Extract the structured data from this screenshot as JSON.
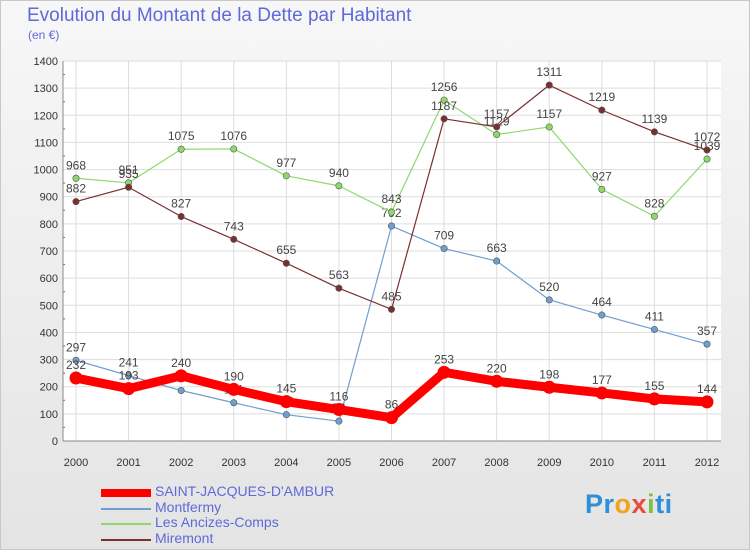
{
  "header": {
    "title": "Evolution du Montant de la Dette par Habitant",
    "subtitle": "(en €)"
  },
  "chart_data": {
    "type": "line",
    "title": "Evolution du Montant de la Dette par Habitant",
    "subtitle": "(en €)",
    "xlabel": "",
    "ylabel": "",
    "categories": [
      "2000",
      "2001",
      "2002",
      "2003",
      "2004",
      "2005",
      "2006",
      "2007",
      "2008",
      "2009",
      "2010",
      "2011",
      "2012"
    ],
    "ylim": [
      0,
      1400
    ],
    "yticks": [
      0,
      100,
      200,
      300,
      400,
      500,
      600,
      700,
      800,
      900,
      1000,
      1100,
      1200,
      1300,
      1400
    ],
    "grid": true,
    "legend_position": "bottom-left",
    "series": [
      {
        "name": "SAINT-JACQUES-D'AMBUR",
        "color": "#ff0000",
        "values": [
          232,
          193,
          240,
          190,
          145,
          116,
          86,
          253,
          220,
          198,
          177,
          155,
          144
        ]
      },
      {
        "name": "Montfermy",
        "color": "#6f9fcf",
        "values": [
          297,
          241,
          186,
          141,
          97,
          73,
          792,
          709,
          663,
          520,
          464,
          411,
          357
        ]
      },
      {
        "name": "Les Ancizes-Comps",
        "color": "#8fd96b",
        "values": [
          968,
          951,
          1075,
          1076,
          977,
          940,
          843,
          1256,
          1129,
          1157,
          927,
          828,
          1039
        ]
      },
      {
        "name": "Miremont",
        "color": "#7b2f2f",
        "values": [
          882,
          935,
          827,
          743,
          655,
          563,
          485,
          1187,
          1157,
          1311,
          1219,
          1139,
          1072
        ]
      }
    ]
  },
  "logo": {
    "parts": [
      "Pr",
      "o",
      "x",
      "i",
      "ti"
    ]
  }
}
